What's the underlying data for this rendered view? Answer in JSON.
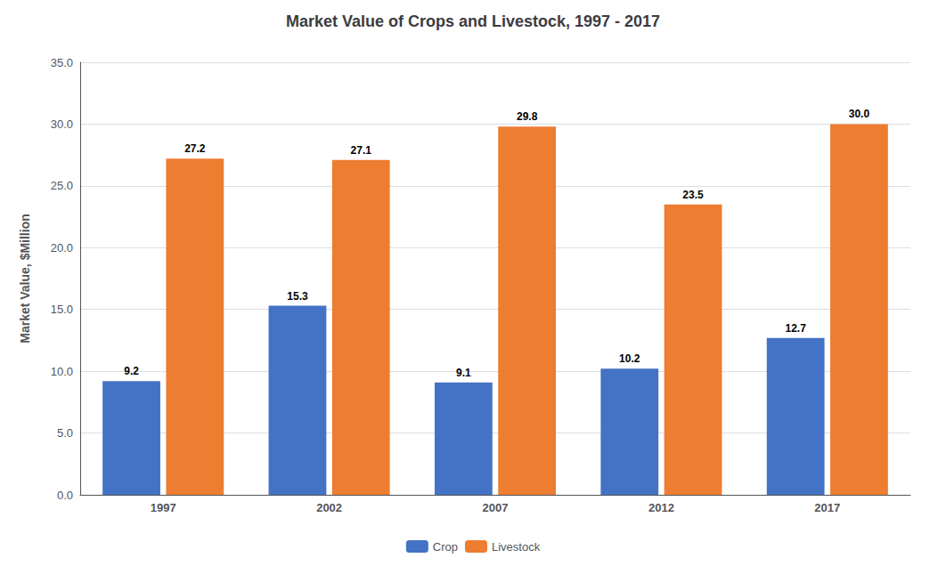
{
  "chart_data": {
    "type": "bar",
    "title": "Market Value of Crops and Livestock, 1997 - 2017",
    "ylabel": "Market Value, $Million",
    "categories": [
      "1997",
      "2002",
      "2007",
      "2012",
      "2017"
    ],
    "series": [
      {
        "name": "Crop",
        "color": "#4472C4",
        "values": [
          9.2,
          15.3,
          9.1,
          10.2,
          12.7
        ]
      },
      {
        "name": "Livestock",
        "color": "#ED7D31",
        "values": [
          27.2,
          27.1,
          29.8,
          23.5,
          30.0
        ],
        "value_labels": [
          "27.2",
          "27.1",
          "29.8",
          "23.5",
          "30.0"
        ]
      }
    ],
    "ylim": [
      0,
      35
    ],
    "yticks": [
      {
        "value": 0,
        "label": "0.0"
      },
      {
        "value": 5,
        "label": "5.0"
      },
      {
        "value": 10,
        "label": "10.0"
      },
      {
        "value": 15,
        "label": "15.0"
      },
      {
        "value": 20,
        "label": "20.0"
      },
      {
        "value": 25,
        "label": "25.0"
      },
      {
        "value": 30,
        "label": "30.0"
      },
      {
        "value": 35,
        "label": "35.0"
      }
    ],
    "grid": true,
    "legend": "bottom",
    "data_labels": true
  }
}
